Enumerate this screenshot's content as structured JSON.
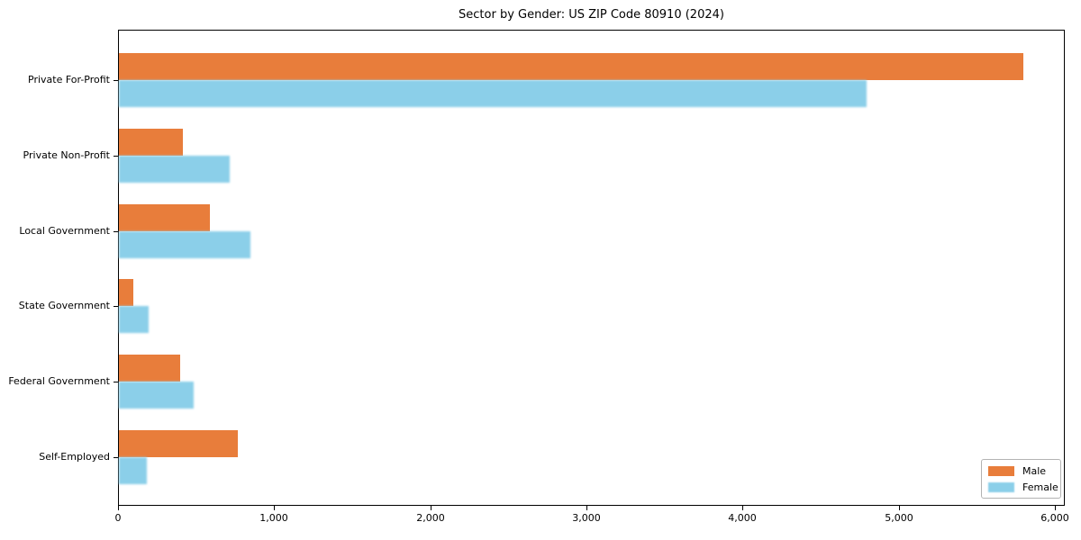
{
  "title": "Sector by Gender: US ZIP Code 80910 (2024)",
  "chart_data": {
    "type": "bar",
    "orientation": "horizontal",
    "title": "Sector by Gender: US ZIP Code 80910 (2024)",
    "xlabel": "",
    "ylabel": "",
    "categories": [
      "Private For-Profit",
      "Private Non-Profit",
      "Local Government",
      "State Government",
      "Federal Government",
      "Self-Employed"
    ],
    "series": [
      {
        "name": "Male",
        "color": "#e87d3b",
        "values": [
          5790,
          410,
          580,
          95,
          395,
          760
        ]
      },
      {
        "name": "Female",
        "color": "#8bcfe9",
        "values": [
          4790,
          710,
          840,
          190,
          480,
          180
        ]
      }
    ],
    "xlim": [
      0,
      6060
    ],
    "x_tick_values": [
      0,
      1000,
      2000,
      3000,
      4000,
      5000,
      6000
    ],
    "x_tick_labels": [
      "0",
      "1,000",
      "2,000",
      "3,000",
      "4,000",
      "5,000",
      "6,000"
    ],
    "grid": false,
    "legend_position": "lower right",
    "legend_border_color": "#b3b3b3"
  }
}
